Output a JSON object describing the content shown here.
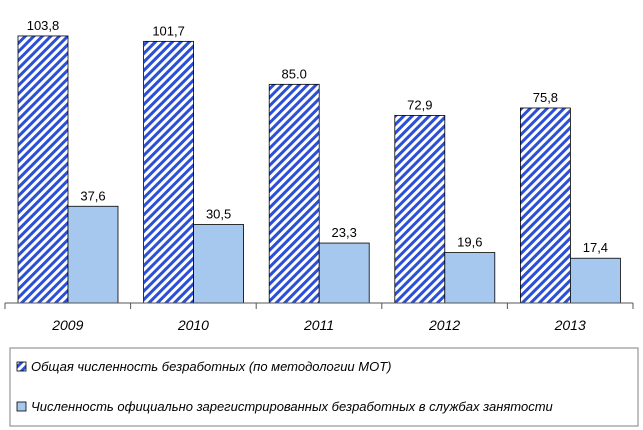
{
  "chart_data": {
    "type": "bar",
    "categories": [
      "2009",
      "2010",
      "2011",
      "2012",
      "2013"
    ],
    "series": [
      {
        "name": "Общая численность безработных (по методологии МОТ)",
        "values": [
          103.8,
          101.7,
          85.0,
          72.9,
          75.8
        ],
        "labels": [
          "103,8",
          "101,7",
          "85.0",
          "72,9",
          "75,8"
        ],
        "style": "hatched",
        "color": "#2b4fd6"
      },
      {
        "name": "Численность официально зарегистрированных безработных в службах занятости",
        "values": [
          37.6,
          30.5,
          23.3,
          19.6,
          17.4
        ],
        "labels": [
          "37,6",
          "30,5",
          "23,3",
          "19,6",
          "17,4"
        ],
        "style": "solid",
        "color": "#a6c8ee"
      }
    ],
    "ylim": [
      0,
      110
    ],
    "grid": false,
    "legend_position": "bottom"
  }
}
